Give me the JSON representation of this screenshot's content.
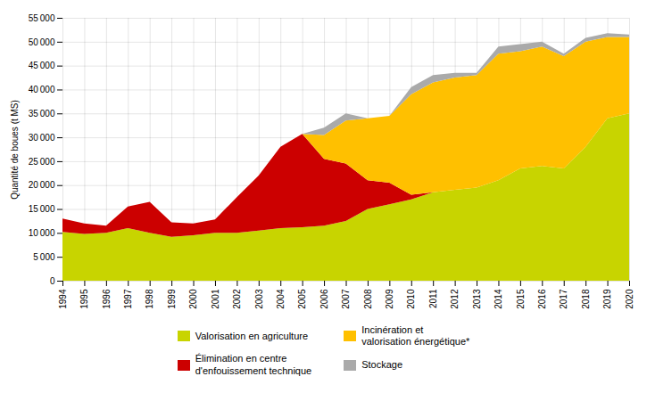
{
  "chart_data": {
    "type": "area",
    "stacked": true,
    "x": [
      1994,
      1995,
      1996,
      1997,
      1998,
      1999,
      2000,
      2001,
      2002,
      2003,
      2004,
      2005,
      2006,
      2007,
      2008,
      2009,
      2010,
      2011,
      2012,
      2013,
      2014,
      2015,
      2016,
      2017,
      2018,
      2019,
      2020
    ],
    "series": [
      {
        "name": "Valorisation en agriculture",
        "color": "#c8d400",
        "values": [
          10200,
          9800,
          10000,
          11000,
          10000,
          9200,
          9500,
          10000,
          10000,
          10500,
          11000,
          11200,
          11500,
          12500,
          15000,
          16000,
          17000,
          18500,
          19000,
          19500,
          21000,
          23500,
          24000,
          23500,
          28000,
          34000,
          35000
        ]
      },
      {
        "name": "Élimination en centre\nd'enfouissement technique",
        "color": "#cc0000",
        "values": [
          2800,
          2200,
          1500,
          4500,
          6500,
          3000,
          2500,
          2800,
          7500,
          11500,
          17000,
          19500,
          14000,
          12000,
          6000,
          4500,
          1000,
          0,
          0,
          0,
          0,
          0,
          0,
          0,
          0,
          0,
          0
        ]
      },
      {
        "name": "Incinération et\nvalorisation énergétique*",
        "color": "#ffc000",
        "values": [
          0,
          0,
          0,
          0,
          0,
          0,
          0,
          0,
          0,
          0,
          0,
          0,
          5000,
          9000,
          13000,
          14000,
          21000,
          23000,
          23500,
          23500,
          26500,
          24500,
          25000,
          23500,
          22000,
          17000,
          16000
        ]
      },
      {
        "name": "Stockage",
        "color": "#aaaaaa",
        "values": [
          0,
          0,
          0,
          0,
          0,
          0,
          0,
          0,
          0,
          0,
          0,
          0,
          1500,
          1500,
          0,
          0,
          1500,
          1500,
          1000,
          500,
          1500,
          1500,
          1000,
          500,
          800,
          800,
          500
        ]
      }
    ],
    "ylabel": "Quantité de boues (t MS)",
    "xlim": [
      1994,
      2020
    ],
    "xticks": [
      1994,
      1995,
      1996,
      1997,
      1998,
      1999,
      2000,
      2001,
      2002,
      2003,
      2004,
      2005,
      2006,
      2007,
      2008,
      2009,
      2010,
      2011,
      2012,
      2013,
      2014,
      2015,
      2016,
      2017,
      2018,
      2019,
      2020
    ],
    "ylim": [
      0,
      55000
    ],
    "yticks": [
      0,
      {
        "value": 5000,
        "label": "5 000"
      },
      {
        "value": 10000,
        "label": "10 000"
      },
      {
        "value": 15000,
        "label": "15 000"
      },
      {
        "value": 20000,
        "label": "20 000"
      },
      {
        "value": 25000,
        "label": "25 000"
      },
      {
        "value": 30000,
        "label": "30 000"
      },
      {
        "value": 35000,
        "label": "35 000"
      },
      {
        "value": 40000,
        "label": "40 000"
      },
      {
        "value": 45000,
        "label": "45 000"
      },
      {
        "value": 50000,
        "label": "50 000"
      },
      {
        "value": 55000,
        "label": "55 000"
      }
    ],
    "grid": true,
    "legend": "bottom"
  }
}
